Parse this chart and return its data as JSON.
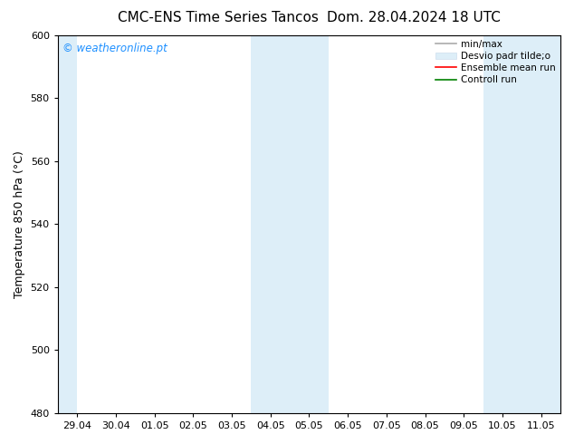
{
  "title_left": "CMC-ENS Time Series Tancos",
  "title_right": "Dom. 28.04.2024 18 UTC",
  "ylabel": "Temperature 850 hPa (°C)",
  "ylim": [
    480,
    600
  ],
  "yticks": [
    480,
    500,
    520,
    540,
    560,
    580,
    600
  ],
  "xtick_labels": [
    "29.04",
    "30.04",
    "01.05",
    "02.05",
    "03.05",
    "04.05",
    "05.05",
    "06.05",
    "07.05",
    "08.05",
    "09.05",
    "10.05",
    "11.05"
  ],
  "xtick_positions": [
    0,
    1,
    2,
    3,
    4,
    5,
    6,
    7,
    8,
    9,
    10,
    11,
    12
  ],
  "xlim": [
    -0.5,
    12.5
  ],
  "shaded_regions": [
    {
      "xmin": -0.5,
      "xmax": 0.0,
      "color": "#ddeef8"
    },
    {
      "xmin": 4.5,
      "xmax": 6.5,
      "color": "#ddeef8"
    },
    {
      "xmin": 10.5,
      "xmax": 12.5,
      "color": "#ddeef8"
    }
  ],
  "watermark_text": "© weatheronline.pt",
  "watermark_color": "#1e90ff",
  "bg_color": "#ffffff",
  "title_fontsize": 11,
  "label_fontsize": 9,
  "tick_fontsize": 8,
  "legend_fontsize": 7.5
}
